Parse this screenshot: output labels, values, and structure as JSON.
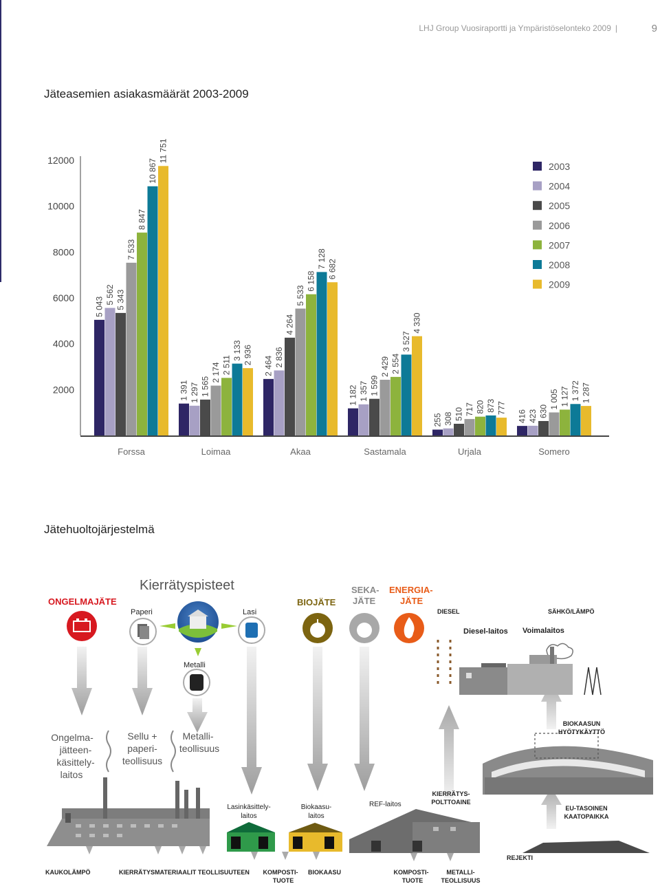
{
  "header": {
    "text": "LHJ Group Vuosiraportti ja Ympäristöselonteko 2009",
    "page": "9"
  },
  "chart_title": "Jäteasemien asiakasmäärät 2003-2009",
  "colors": [
    "#2e2665",
    "#a7a0c4",
    "#4a4a4a",
    "#9a9a9a",
    "#8db33d",
    "#0d7a97",
    "#e8ba2c"
  ],
  "chart_data": {
    "type": "bar",
    "title": "Jäteasemien asiakasmäärät 2003-2009",
    "categories": [
      "Forssa",
      "Loimaa",
      "Akaa",
      "Sastamala",
      "Urjala",
      "Somero"
    ],
    "yticks": [
      "12000",
      "10000",
      "8000",
      "6000",
      "4000",
      "2000"
    ],
    "ylim": [
      0,
      12000
    ],
    "legend_position": "top-right",
    "series": [
      {
        "name": "2003",
        "values": [
          5043,
          1391,
          2464,
          1182,
          255,
          416
        ],
        "labels": [
          "5 043",
          "1 391",
          "2 464",
          "1 182",
          "255",
          "416"
        ]
      },
      {
        "name": "2004",
        "values": [
          5562,
          1297,
          2836,
          1357,
          308,
          423
        ],
        "labels": [
          "5 562",
          "1 297",
          "2 836",
          "1 357",
          "308",
          "423"
        ]
      },
      {
        "name": "2005",
        "values": [
          5343,
          1565,
          4264,
          1599,
          510,
          630
        ],
        "labels": [
          "5 343",
          "1 565",
          "4 264",
          "1 599",
          "510",
          "630"
        ]
      },
      {
        "name": "2006",
        "values": [
          7533,
          2174,
          5533,
          2429,
          717,
          1005
        ],
        "labels": [
          "7 533",
          "2 174",
          "5 533",
          "2 429",
          "717",
          "1 005"
        ]
      },
      {
        "name": "2007",
        "values": [
          8847,
          2511,
          6158,
          2554,
          820,
          1127
        ],
        "labels": [
          "8 847",
          "2 511",
          "6 158",
          "2 554",
          "820",
          "1 127"
        ]
      },
      {
        "name": "2008",
        "values": [
          10867,
          3133,
          7128,
          3527,
          873,
          1372
        ],
        "labels": [
          "10 867",
          "3 133",
          "7 128",
          "3 527",
          "873",
          "1 372"
        ]
      },
      {
        "name": "2009",
        "values": [
          11751,
          2936,
          6682,
          4330,
          777,
          1287
        ],
        "labels": [
          "11 751",
          "2 936",
          "6 682",
          "4 330",
          "777",
          "1 287"
        ]
      }
    ]
  },
  "diagram_title": "Jätehuoltojärjestelmä",
  "diagram": {
    "ongelmajate": "ONGELMAJÄTE",
    "kierratyspisteet": "Kierrätyspisteet",
    "paperi": "Paperi",
    "lasi": "Lasi",
    "metalli": "Metalli",
    "biojate": "BIOJÄTE",
    "seka1": "SEKA-",
    "seka2": "JÄTE",
    "energia1": "ENERGIA-",
    "energia2": "JÄTE",
    "diesel": "DIESEL",
    "sahko": "SÄHKÖ/LÄMPÖ",
    "diesel_laitos": "Diesel-laitos",
    "voimalaitos": "Voimalaitos",
    "ongelma_laitos": [
      "Ongelma-",
      "jätteen-",
      "käsittely-",
      "laitos"
    ],
    "sellu": [
      "Sellu +",
      "paperi-",
      "teollisuus"
    ],
    "metalliteollisuus": [
      "Metalli-",
      "teollisuus"
    ],
    "biokaasun": [
      "BIOKAASUN",
      "HYÖTYKÄYTTÖ"
    ],
    "lasinkasittely": [
      "Lasinkäsittely-",
      "laitos"
    ],
    "biokaasulaitos": [
      "Biokaasu-",
      "laitos"
    ],
    "ref": "REF-laitos",
    "kierratyspolttoaine": [
      "KIERRÄTYS-",
      "POLTTOAINE"
    ],
    "eu": [
      "EU-TASOINEN",
      "KAATOPAIKKA"
    ],
    "rejekti": "REJEKTI",
    "kaukolampo": "KAUKOLÄMPÖ",
    "kierratysmateriaalit": "KIERRÄTYSMATERIAALIT TEOLLISUUTEEN",
    "komposti1": [
      "KOMPOSTI-",
      "TUOTE"
    ],
    "biokaasu": "BIOKAASU",
    "komposti2": [
      "KOMPOSTI-",
      "TUOTE"
    ],
    "metalliteollisuus2": [
      "METALLI-",
      "TEOLLISUUS"
    ]
  }
}
